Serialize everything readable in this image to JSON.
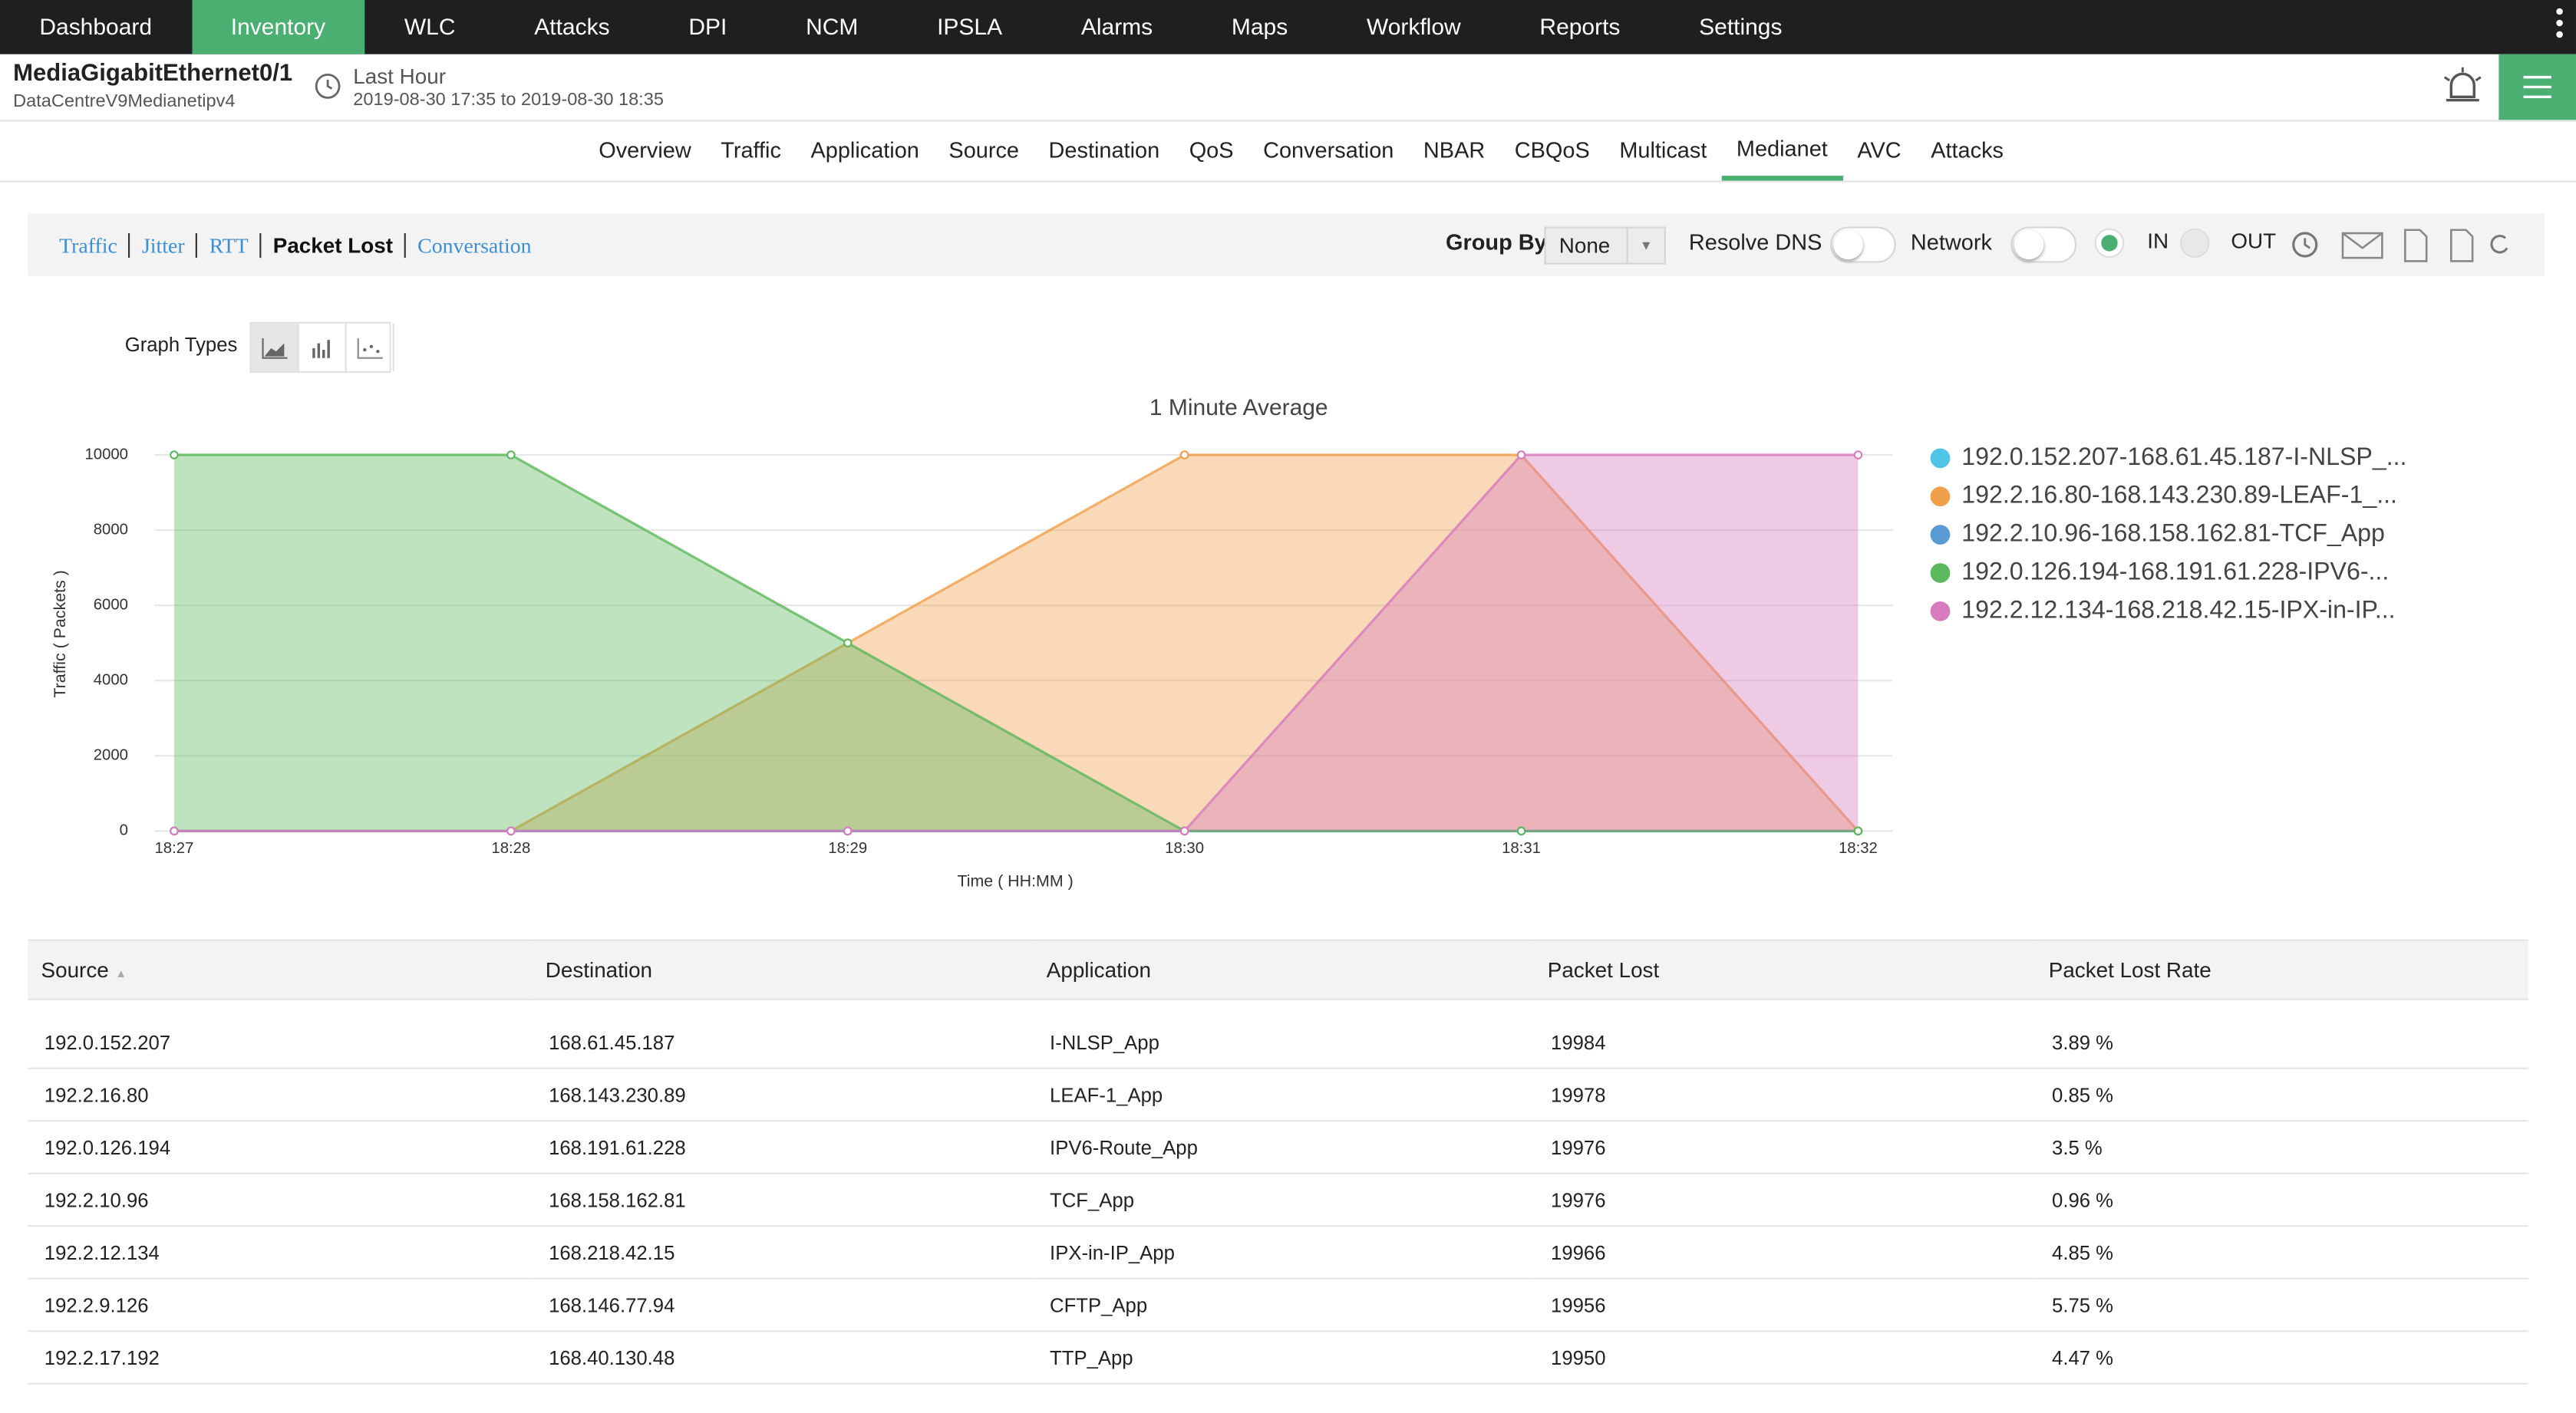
{
  "nav": [
    "Dashboard",
    "Inventory",
    "WLC",
    "Attacks",
    "DPI",
    "NCM",
    "IPSLA",
    "Alarms",
    "Maps",
    "Workflow",
    "Reports",
    "Settings"
  ],
  "header": {
    "title": "MediaGigabitEthernet0/1",
    "subtitle": "DataCentreV9Medianetipv4",
    "period": "Last Hour",
    "range": "2019-08-30 17:35 to 2019-08-30 18:35"
  },
  "tabs": [
    "Overview",
    "Traffic",
    "Application",
    "Source",
    "Destination",
    "QoS",
    "Conversation",
    "NBAR",
    "CBQoS",
    "Multicast",
    "Medianet",
    "AVC",
    "Attacks"
  ],
  "subtabs": [
    "Traffic",
    "Jitter",
    "RTT",
    "Packet Lost",
    "Conversation"
  ],
  "toolbar": {
    "group_by": "Group By",
    "group_value": "None",
    "resolve_dns": "Resolve DNS",
    "network": "Network",
    "in": "IN",
    "out": "OUT"
  },
  "graph_types": "Graph Types",
  "chart_data": {
    "type": "area",
    "title": "1 Minute Average",
    "x_label": "Time ( HH:MM )",
    "y_label": "Traffic ( Packets )",
    "categories": [
      "18:27",
      "18:28",
      "18:29",
      "18:30",
      "18:31",
      "18:32"
    ],
    "series": [
      {
        "name": "192.0.152.207-168.61.45.187-I-NLSP_...",
        "color": "#4fc3e8",
        "values": [
          0,
          0,
          0,
          0,
          0,
          0
        ]
      },
      {
        "name": "192.2.16.80-168.143.230.89-LEAF-1_...",
        "color": "#f0a04b",
        "values": [
          0,
          0,
          5000,
          10000,
          10000,
          0
        ]
      },
      {
        "name": "192.2.10.96-168.158.162.81-TCF_App",
        "color": "#5b9bd5",
        "values": [
          0,
          0,
          0,
          0,
          0,
          0
        ]
      },
      {
        "name": "192.0.126.194-168.191.61.228-IPV6-...",
        "color": "#5cb85c",
        "values": [
          10000,
          10000,
          5000,
          0,
          0,
          0
        ]
      },
      {
        "name": "192.2.12.134-168.218.42.15-IPX-in-IP...",
        "color": "#d77bbf",
        "values": [
          0,
          0,
          0,
          0,
          10000,
          10000
        ]
      }
    ],
    "ylim": [
      0,
      10000
    ],
    "yticks": [
      0,
      2000,
      4000,
      6000,
      8000,
      10000
    ],
    "grid": true,
    "legend": "right"
  },
  "table": {
    "columns": [
      "Source",
      "Destination",
      "Application",
      "Packet Lost",
      "Packet Lost Rate"
    ],
    "rows": [
      [
        "192.0.152.207",
        "168.61.45.187",
        "I-NLSP_App",
        "19984",
        "3.89 %"
      ],
      [
        "192.2.16.80",
        "168.143.230.89",
        "LEAF-1_App",
        "19978",
        "0.85 %"
      ],
      [
        "192.0.126.194",
        "168.191.61.228",
        "IPV6-Route_App",
        "19976",
        "3.5 %"
      ],
      [
        "192.2.10.96",
        "168.158.162.81",
        "TCF_App",
        "19976",
        "0.96 %"
      ],
      [
        "192.2.12.134",
        "168.218.42.15",
        "IPX-in-IP_App",
        "19966",
        "4.85 %"
      ],
      [
        "192.2.9.126",
        "168.146.77.94",
        "CFTP_App",
        "19956",
        "5.75 %"
      ],
      [
        "192.2.17.192",
        "168.40.130.48",
        "TTP_App",
        "19950",
        "4.47 %"
      ]
    ]
  }
}
